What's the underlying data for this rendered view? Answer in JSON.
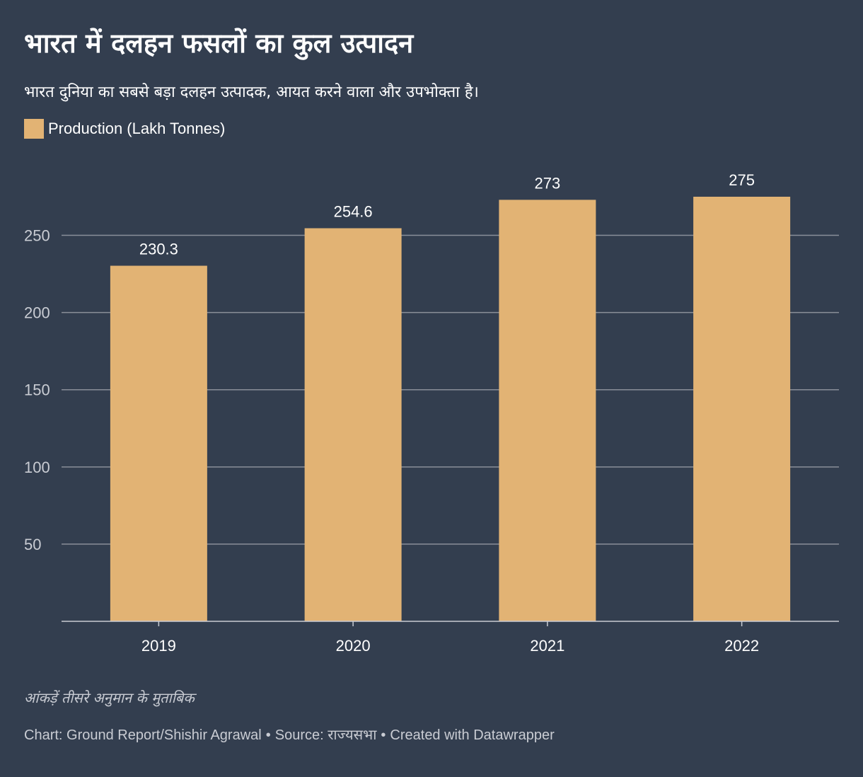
{
  "title": "भारत में दलहन फसलों का कुल उत्पादन",
  "subtitle": "भारत दुनिया का सबसे बड़ा दलहन उत्पादक, आयत करने वाला और उपभोक्ता है।",
  "note": "आंकड़ें तीसरे अनुमान के मुताबिक",
  "credit": {
    "chart": "Chart: Ground Report/Shishir Agrawal",
    "source": "Source: राज्यसभा",
    "created": "Created with Datawrapper",
    "separator": "•"
  },
  "colors": {
    "background": "#333e4f",
    "bar": "#e2b374",
    "grid": "#8a8f99",
    "axis_text": "#c9ccd3"
  },
  "chart_data": {
    "type": "bar",
    "categories": [
      "2019",
      "2020",
      "2021",
      "2022"
    ],
    "series": [
      {
        "name": "Production (Lakh Tonnes)",
        "values": [
          230.3,
          254.6,
          273,
          275
        ],
        "labels": [
          "230.3",
          "254.6",
          "273",
          "275"
        ]
      }
    ],
    "ylim": [
      0,
      275
    ],
    "yticks": [
      50,
      100,
      150,
      200,
      250
    ],
    "grid": true,
    "legend": "top-left",
    "xlabel": "",
    "ylabel": ""
  }
}
